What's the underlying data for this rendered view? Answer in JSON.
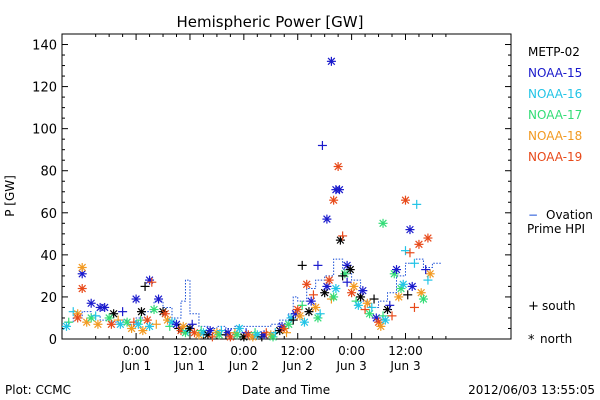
{
  "chart_data": {
    "type": "scatter",
    "title": "Hemispheric Power [GW]",
    "ylabel": "P [GW]",
    "xlabel": "Date and Time",
    "ylim": [
      0,
      145
    ],
    "xlim": [
      -16.5,
      83.5
    ],
    "y_ticks": [
      0,
      20,
      40,
      60,
      80,
      100,
      120,
      140
    ],
    "x_ticks": [
      {
        "x": 0,
        "time": "0:00",
        "date": "Jun 1"
      },
      {
        "x": 12,
        "time": "12:00",
        "date": "Jun 1"
      },
      {
        "x": 24,
        "time": "0:00",
        "date": "Jun 2"
      },
      {
        "x": 36,
        "time": "12:00",
        "date": "Jun 2"
      },
      {
        "x": 48,
        "time": "0:00",
        "date": "Jun 3"
      },
      {
        "x": 60,
        "time": "12:00",
        "date": "Jun 3"
      }
    ],
    "grid": false,
    "legend_position": "right",
    "series": [
      {
        "name": "METP-02",
        "color": "#000000"
      },
      {
        "name": "NOAA-15",
        "color": "#1a1acc"
      },
      {
        "name": "NOAA-16",
        "color": "#22c4e6"
      },
      {
        "name": "NOAA-17",
        "color": "#33dd77"
      },
      {
        "name": "NOAA-18",
        "color": "#f29a22"
      },
      {
        "name": "NOAA-19",
        "color": "#e84a1a"
      }
    ],
    "ovation": {
      "label_line1": "Ovation",
      "label_line2": "Prime HPI",
      "color": "#1a4fd6",
      "points": [
        [
          -16,
          8
        ],
        [
          -14,
          10
        ],
        [
          -12,
          13
        ],
        [
          -10,
          11
        ],
        [
          -8,
          9
        ],
        [
          -6,
          8
        ],
        [
          -4,
          9
        ],
        [
          -2,
          7
        ],
        [
          0,
          10
        ],
        [
          2,
          13
        ],
        [
          4,
          18
        ],
        [
          6,
          15
        ],
        [
          8,
          10
        ],
        [
          10,
          18
        ],
        [
          11,
          28
        ],
        [
          12,
          12
        ],
        [
          14,
          6
        ],
        [
          16,
          5
        ],
        [
          18,
          6
        ],
        [
          20,
          5
        ],
        [
          22,
          6
        ],
        [
          24,
          6
        ],
        [
          26,
          6
        ],
        [
          28,
          6
        ],
        [
          30,
          7
        ],
        [
          32,
          9
        ],
        [
          34,
          12
        ],
        [
          35,
          20
        ],
        [
          36,
          18
        ],
        [
          38,
          24
        ],
        [
          40,
          28
        ],
        [
          42,
          30
        ],
        [
          44,
          38
        ],
        [
          46,
          33
        ],
        [
          48,
          28
        ],
        [
          50,
          18
        ],
        [
          52,
          15
        ],
        [
          54,
          18
        ],
        [
          56,
          22
        ],
        [
          58,
          30
        ],
        [
          60,
          36
        ],
        [
          62,
          38
        ],
        [
          64,
          34
        ],
        [
          66,
          36
        ]
      ]
    },
    "markers": {
      "south_symbol": "+",
      "south_label": "south",
      "north_symbol": "*",
      "north_label": "north"
    },
    "points": [
      {
        "sat": "NOAA-15",
        "m": "*",
        "x": 43.5,
        "y": 132
      },
      {
        "sat": "NOAA-15",
        "m": "+",
        "x": 41.5,
        "y": 92
      },
      {
        "sat": "NOAA-19",
        "m": "*",
        "x": 45,
        "y": 82
      },
      {
        "sat": "NOAA-15",
        "m": "*",
        "x": 44.5,
        "y": 71
      },
      {
        "sat": "NOAA-15",
        "m": "*",
        "x": 45.3,
        "y": 71
      },
      {
        "sat": "NOAA-19",
        "m": "*",
        "x": 44,
        "y": 66
      },
      {
        "sat": "NOAA-19",
        "m": "*",
        "x": 60,
        "y": 66
      },
      {
        "sat": "NOAA-16",
        "m": "+",
        "x": 62.5,
        "y": 64
      },
      {
        "sat": "NOAA-15",
        "m": "*",
        "x": 42.5,
        "y": 57
      },
      {
        "sat": "NOAA-17",
        "m": "*",
        "x": 55,
        "y": 55
      },
      {
        "sat": "NOAA-15",
        "m": "*",
        "x": 61,
        "y": 52
      },
      {
        "sat": "METP-02",
        "m": "*",
        "x": 45.5,
        "y": 47
      },
      {
        "sat": "NOAA-19",
        "m": "*",
        "x": 63,
        "y": 45
      },
      {
        "sat": "NOAA-19",
        "m": "+",
        "x": 46,
        "y": 49
      },
      {
        "sat": "NOAA-19",
        "m": "*",
        "x": 65,
        "y": 48
      },
      {
        "sat": "NOAA-16",
        "m": "+",
        "x": 60,
        "y": 42
      },
      {
        "sat": "NOAA-19",
        "m": "+",
        "x": 61,
        "y": 41
      },
      {
        "sat": "METP-02",
        "m": "+",
        "x": 37,
        "y": 35
      },
      {
        "sat": "NOAA-15",
        "m": "+",
        "x": 40.5,
        "y": 35
      },
      {
        "sat": "NOAA-15",
        "m": "*",
        "x": 47,
        "y": 35
      },
      {
        "sat": "METP-02",
        "m": "*",
        "x": 47.7,
        "y": 33
      },
      {
        "sat": "NOAA-17",
        "m": "*",
        "x": 46.5,
        "y": 31
      },
      {
        "sat": "NOAA-15",
        "m": "*",
        "x": -12,
        "y": 31
      },
      {
        "sat": "NOAA-19",
        "m": "*",
        "x": -12,
        "y": 24
      },
      {
        "sat": "NOAA-18",
        "m": "*",
        "x": -12,
        "y": 34
      },
      {
        "sat": "NOAA-17",
        "m": "*",
        "x": 57.5,
        "y": 31
      },
      {
        "sat": "NOAA-18",
        "m": "*",
        "x": 65.5,
        "y": 31
      },
      {
        "sat": "NOAA-15",
        "m": "+",
        "x": 64.5,
        "y": 33
      },
      {
        "sat": "NOAA-16",
        "m": "+",
        "x": 62,
        "y": 36
      },
      {
        "sat": "NOAA-15",
        "m": "*",
        "x": 58,
        "y": 33
      },
      {
        "sat": "NOAA-19",
        "m": "*",
        "x": 38,
        "y": 26
      },
      {
        "sat": "NOAA-15",
        "m": "*",
        "x": 3,
        "y": 28
      },
      {
        "sat": "NOAA-19",
        "m": "+",
        "x": 3.5,
        "y": 27
      },
      {
        "sat": "METP-02",
        "m": "+",
        "x": 2,
        "y": 25
      },
      {
        "sat": "NOAA-15",
        "m": "*",
        "x": 0,
        "y": 19
      },
      {
        "sat": "NOAA-15",
        "m": "*",
        "x": 5,
        "y": 19
      },
      {
        "sat": "NOAA-15",
        "m": "*",
        "x": -10,
        "y": 17
      },
      {
        "sat": "NOAA-15",
        "m": "*",
        "x": -8,
        "y": 15
      },
      {
        "sat": "NOAA-15",
        "m": "*",
        "x": -7,
        "y": 15
      },
      {
        "sat": "METP-02",
        "m": "*",
        "x": -5,
        "y": 12
      },
      {
        "sat": "NOAA-16",
        "m": "+",
        "x": -14,
        "y": 13
      },
      {
        "sat": "NOAA-18",
        "m": "*",
        "x": -13,
        "y": 12
      },
      {
        "sat": "NOAA-17",
        "m": "+",
        "x": -15,
        "y": 8
      },
      {
        "sat": "NOAA-16",
        "m": "*",
        "x": -15.5,
        "y": 6
      },
      {
        "sat": "NOAA-19",
        "m": "*",
        "x": -13,
        "y": 10
      },
      {
        "sat": "NOAA-18",
        "m": "*",
        "x": -11,
        "y": 8
      },
      {
        "sat": "NOAA-17",
        "m": "*",
        "x": -10,
        "y": 10
      },
      {
        "sat": "NOAA-16",
        "m": "+",
        "x": -9,
        "y": 11
      },
      {
        "sat": "NOAA-18",
        "m": "*",
        "x": -8.5,
        "y": 7
      },
      {
        "sat": "NOAA-17",
        "m": "*",
        "x": -6,
        "y": 10
      },
      {
        "sat": "NOAA-19",
        "m": "*",
        "x": -5.5,
        "y": 7
      },
      {
        "sat": "NOAA-18",
        "m": "+",
        "x": -4,
        "y": 9
      },
      {
        "sat": "NOAA-16",
        "m": "*",
        "x": -3.5,
        "y": 7
      },
      {
        "sat": "NOAA-15",
        "m": "+",
        "x": -3,
        "y": 13
      },
      {
        "sat": "NOAA-17",
        "m": "*",
        "x": -2,
        "y": 8
      },
      {
        "sat": "NOAA-18",
        "m": "*",
        "x": -1,
        "y": 5
      },
      {
        "sat": "NOAA-19",
        "m": "+",
        "x": -0.5,
        "y": 8
      },
      {
        "sat": "NOAA-16",
        "m": "*",
        "x": 0.5,
        "y": 7
      },
      {
        "sat": "NOAA-17",
        "m": "+",
        "x": 1,
        "y": 9
      },
      {
        "sat": "NOAA-18",
        "m": "*",
        "x": 1.5,
        "y": 4
      },
      {
        "sat": "METP-02",
        "m": "*",
        "x": 1.2,
        "y": 13
      },
      {
        "sat": "NOAA-19",
        "m": "*",
        "x": 2.5,
        "y": 9
      },
      {
        "sat": "NOAA-16",
        "m": "*",
        "x": 3,
        "y": 6
      },
      {
        "sat": "NOAA-17",
        "m": "*",
        "x": 4,
        "y": 14
      },
      {
        "sat": "NOAA-18",
        "m": "+",
        "x": 4.5,
        "y": 7
      },
      {
        "sat": "METP-02",
        "m": "*",
        "x": 6,
        "y": 13
      },
      {
        "sat": "NOAA-19",
        "m": "*",
        "x": 6.5,
        "y": 12
      },
      {
        "sat": "NOAA-18",
        "m": "*",
        "x": 7,
        "y": 9
      },
      {
        "sat": "NOAA-17",
        "m": "+",
        "x": 7.5,
        "y": 6
      },
      {
        "sat": "NOAA-16",
        "m": "*",
        "x": 8,
        "y": 8
      },
      {
        "sat": "NOAA-15",
        "m": "*",
        "x": 9,
        "y": 7
      },
      {
        "sat": "METP-02",
        "m": "+",
        "x": 9.5,
        "y": 5
      },
      {
        "sat": "NOAA-19",
        "m": "*",
        "x": 10,
        "y": 4
      },
      {
        "sat": "NOAA-18",
        "m": "*",
        "x": 10.5,
        "y": 6
      },
      {
        "sat": "NOAA-17",
        "m": "*",
        "x": 11,
        "y": 3
      },
      {
        "sat": "NOAA-16",
        "m": "+",
        "x": 11.5,
        "y": 4
      },
      {
        "sat": "METP-02",
        "m": "*",
        "x": 12,
        "y": 5
      },
      {
        "sat": "NOAA-15",
        "m": "+",
        "x": 12.5,
        "y": 7
      },
      {
        "sat": "NOAA-19",
        "m": "*",
        "x": 13,
        "y": 3
      },
      {
        "sat": "NOAA-18",
        "m": "*",
        "x": 14,
        "y": 2
      },
      {
        "sat": "NOAA-17",
        "m": "+",
        "x": 14.5,
        "y": 4
      },
      {
        "sat": "NOAA-16",
        "m": "*",
        "x": 15,
        "y": 3
      },
      {
        "sat": "METP-02",
        "m": "*",
        "x": 16,
        "y": 2
      },
      {
        "sat": "NOAA-15",
        "m": "*",
        "x": 16.5,
        "y": 4
      },
      {
        "sat": "NOAA-19",
        "m": "+",
        "x": 17,
        "y": 1
      },
      {
        "sat": "NOAA-18",
        "m": "*",
        "x": 18,
        "y": 3
      },
      {
        "sat": "NOAA-17",
        "m": "*",
        "x": 18.5,
        "y": 2
      },
      {
        "sat": "NOAA-16",
        "m": "+",
        "x": 19,
        "y": 4
      },
      {
        "sat": "METP-02",
        "m": "+",
        "x": 20,
        "y": 2
      },
      {
        "sat": "NOAA-15",
        "m": "*",
        "x": 20.5,
        "y": 3
      },
      {
        "sat": "NOAA-19",
        "m": "*",
        "x": 21,
        "y": 1
      },
      {
        "sat": "NOAA-18",
        "m": "+",
        "x": 22,
        "y": 3
      },
      {
        "sat": "NOAA-17",
        "m": "*",
        "x": 22.5,
        "y": 2
      },
      {
        "sat": "NOAA-16",
        "m": "*",
        "x": 23,
        "y": 5
      },
      {
        "sat": "METP-02",
        "m": "*",
        "x": 24,
        "y": 1
      },
      {
        "sat": "NOAA-15",
        "m": "+",
        "x": 24.5,
        "y": 3
      },
      {
        "sat": "NOAA-19",
        "m": "*",
        "x": 25,
        "y": 2
      },
      {
        "sat": "NOAA-18",
        "m": "*",
        "x": 26,
        "y": 1
      },
      {
        "sat": "NOAA-17",
        "m": "+",
        "x": 26.5,
        "y": 3
      },
      {
        "sat": "NOAA-16",
        "m": "*",
        "x": 27,
        "y": 2
      },
      {
        "sat": "METP-02",
        "m": "+",
        "x": 28,
        "y": 1
      },
      {
        "sat": "NOAA-15",
        "m": "*",
        "x": 28.5,
        "y": 2
      },
      {
        "sat": "NOAA-19",
        "m": "+",
        "x": 29,
        "y": 3
      },
      {
        "sat": "NOAA-18",
        "m": "*",
        "x": 30,
        "y": 2
      },
      {
        "sat": "NOAA-17",
        "m": "*",
        "x": 30.5,
        "y": 1
      },
      {
        "sat": "NOAA-16",
        "m": "+",
        "x": 31,
        "y": 3
      },
      {
        "sat": "METP-02",
        "m": "*",
        "x": 32,
        "y": 4
      },
      {
        "sat": "NOAA-15",
        "m": "*",
        "x": 32.5,
        "y": 6
      },
      {
        "sat": "NOAA-19",
        "m": "*",
        "x": 33,
        "y": 5
      },
      {
        "sat": "NOAA-18",
        "m": "+",
        "x": 33.5,
        "y": 3
      },
      {
        "sat": "NOAA-17",
        "m": "*",
        "x": 34,
        "y": 7
      },
      {
        "sat": "NOAA-16",
        "m": "*",
        "x": 34.5,
        "y": 10
      },
      {
        "sat": "METP-02",
        "m": "+",
        "x": 35,
        "y": 9
      },
      {
        "sat": "NOAA-15",
        "m": "*",
        "x": 35.5,
        "y": 12
      },
      {
        "sat": "NOAA-19",
        "m": "*",
        "x": 36,
        "y": 14
      },
      {
        "sat": "NOAA-18",
        "m": "*",
        "x": 36.5,
        "y": 11
      },
      {
        "sat": "NOAA-17",
        "m": "+",
        "x": 37,
        "y": 16
      },
      {
        "sat": "NOAA-16",
        "m": "*",
        "x": 37.5,
        "y": 8
      },
      {
        "sat": "METP-02",
        "m": "*",
        "x": 38.5,
        "y": 13
      },
      {
        "sat": "NOAA-15",
        "m": "*",
        "x": 39,
        "y": 18
      },
      {
        "sat": "NOAA-19",
        "m": "+",
        "x": 39.5,
        "y": 21
      },
      {
        "sat": "NOAA-18",
        "m": "*",
        "x": 40,
        "y": 15
      },
      {
        "sat": "NOAA-17",
        "m": "*",
        "x": 40.5,
        "y": 10
      },
      {
        "sat": "NOAA-16",
        "m": "+",
        "x": 41,
        "y": 12
      },
      {
        "sat": "METP-02",
        "m": "*",
        "x": 42,
        "y": 22
      },
      {
        "sat": "NOAA-15",
        "m": "*",
        "x": 42.5,
        "y": 25
      },
      {
        "sat": "NOAA-19",
        "m": "*",
        "x": 43,
        "y": 28
      },
      {
        "sat": "NOAA-18",
        "m": "+",
        "x": 43.5,
        "y": 19
      },
      {
        "sat": "NOAA-17",
        "m": "*",
        "x": 44,
        "y": 20
      },
      {
        "sat": "NOAA-16",
        "m": "*",
        "x": 44.5,
        "y": 24
      },
      {
        "sat": "METP-02",
        "m": "+",
        "x": 46,
        "y": 30
      },
      {
        "sat": "NOAA-15",
        "m": "+",
        "x": 47,
        "y": 27
      },
      {
        "sat": "NOAA-19",
        "m": "*",
        "x": 48,
        "y": 22
      },
      {
        "sat": "NOAA-18",
        "m": "*",
        "x": 48.5,
        "y": 25
      },
      {
        "sat": "NOAA-17",
        "m": "+",
        "x": 49,
        "y": 18
      },
      {
        "sat": "NOAA-16",
        "m": "*",
        "x": 49.5,
        "y": 16
      },
      {
        "sat": "METP-02",
        "m": "*",
        "x": 50,
        "y": 20
      },
      {
        "sat": "NOAA-15",
        "m": "*",
        "x": 50.5,
        "y": 23
      },
      {
        "sat": "NOAA-19",
        "m": "+",
        "x": 51,
        "y": 14
      },
      {
        "sat": "NOAA-18",
        "m": "*",
        "x": 51.5,
        "y": 17
      },
      {
        "sat": "NOAA-17",
        "m": "*",
        "x": 52,
        "y": 12
      },
      {
        "sat": "NOAA-16",
        "m": "+",
        "x": 52.5,
        "y": 15
      },
      {
        "sat": "METP-02",
        "m": "+",
        "x": 53,
        "y": 19
      },
      {
        "sat": "NOAA-15",
        "m": "*",
        "x": 53.5,
        "y": 10
      },
      {
        "sat": "NOAA-19",
        "m": "*",
        "x": 54,
        "y": 8
      },
      {
        "sat": "NOAA-18",
        "m": "*",
        "x": 54.5,
        "y": 6
      },
      {
        "sat": "NOAA-17",
        "m": "+",
        "x": 55,
        "y": 11
      },
      {
        "sat": "NOAA-16",
        "m": "*",
        "x": 55.5,
        "y": 9
      },
      {
        "sat": "METP-02",
        "m": "*",
        "x": 56,
        "y": 14
      },
      {
        "sat": "NOAA-15",
        "m": "+",
        "x": 56.5,
        "y": 16
      },
      {
        "sat": "NOAA-19",
        "m": "+",
        "x": 57,
        "y": 11
      },
      {
        "sat": "NOAA-18",
        "m": "*",
        "x": 58.5,
        "y": 20
      },
      {
        "sat": "NOAA-17",
        "m": "*",
        "x": 59,
        "y": 24
      },
      {
        "sat": "NOAA-16",
        "m": "*",
        "x": 59.5,
        "y": 26
      },
      {
        "sat": "METP-02",
        "m": "+",
        "x": 60.5,
        "y": 21
      },
      {
        "sat": "NOAA-15",
        "m": "*",
        "x": 61.5,
        "y": 25
      },
      {
        "sat": "NOAA-19",
        "m": "+",
        "x": 62,
        "y": 15
      },
      {
        "sat": "NOAA-18",
        "m": "*",
        "x": 63.5,
        "y": 22
      },
      {
        "sat": "NOAA-17",
        "m": "*",
        "x": 64,
        "y": 19
      },
      {
        "sat": "NOAA-16",
        "m": "+",
        "x": 65,
        "y": 28
      }
    ]
  },
  "footer": {
    "left": "Plot: CCMC",
    "center": "Date and Time",
    "right": "2012/06/03 13:55:05"
  }
}
